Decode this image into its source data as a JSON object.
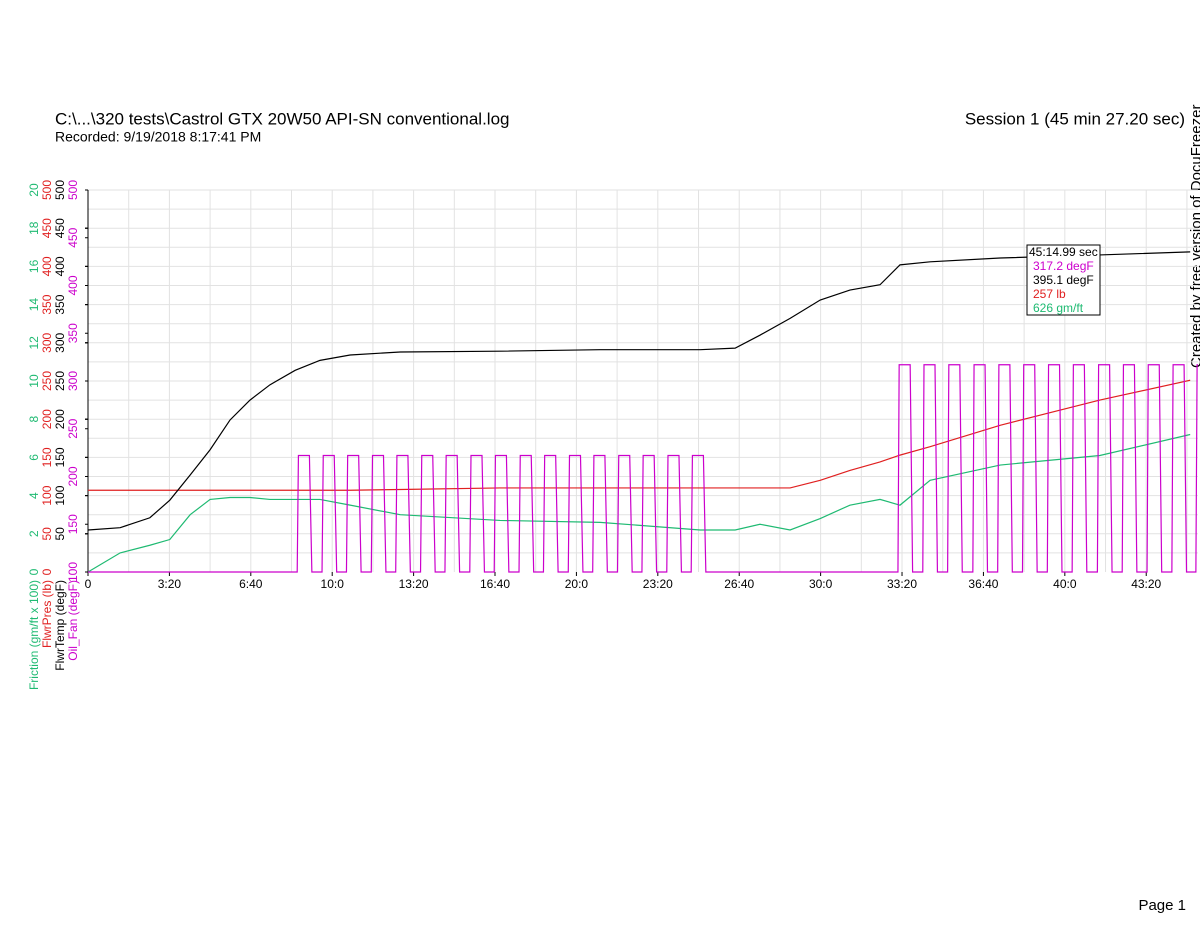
{
  "chart_data": {
    "type": "line",
    "title": "C:\\...\\320 tests\\Castrol GTX 20W50 API-SN conventional.log",
    "subtitle": "Recorded: 9/19/2018 8:17:41 PM",
    "session": "Session 1 (45 min 27.20 sec)",
    "watermark": "Created by free version of DocuFreezer",
    "footer": "Page 1",
    "xlim": [
      0,
      2727.2
    ],
    "xticks": [
      0,
      {
        "value": 200,
        "label": "3:20"
      },
      {
        "value": 400,
        "label": "6:40"
      },
      {
        "value": 600,
        "label": "10:0"
      },
      {
        "value": 800,
        "label": "13:20"
      },
      {
        "value": 1000,
        "label": "16:40"
      },
      {
        "value": 1200,
        "label": "20:0"
      },
      {
        "value": 1400,
        "label": "23:20"
      },
      {
        "value": 1600,
        "label": "26:40"
      },
      {
        "value": 1800,
        "label": "30:0"
      },
      {
        "value": 2000,
        "label": "33:20"
      },
      {
        "value": 2200,
        "label": "36:40"
      },
      {
        "value": 2400,
        "label": "40:0"
      },
      {
        "value": 2600,
        "label": "43:20"
      }
    ],
    "xgrid": [
      100,
      200,
      300,
      400,
      500,
      600,
      700,
      800,
      900,
      1000,
      1100,
      1200,
      1300,
      1400,
      1500,
      1600,
      1700,
      1800,
      1900,
      2000,
      2100,
      2200,
      2300,
      2400,
      2500,
      2600,
      2700
    ],
    "ygrid": [
      1,
      2,
      3,
      4,
      5,
      6,
      7,
      8,
      9,
      10,
      11,
      12,
      13,
      14,
      15,
      16,
      17,
      18,
      19,
      20
    ],
    "grid": true,
    "series": [
      {
        "name": "Friction (gm/ft x 100)",
        "color": "#1fba72",
        "ylim": [
          0,
          20
        ],
        "yticks": [
          0,
          2,
          4,
          6,
          8,
          10,
          12,
          14,
          16,
          18,
          20
        ],
        "x": [
          0,
          79,
          152,
          201,
          251,
          300,
          349,
          398,
          447,
          509,
          570,
          644,
          767,
          1012,
          1258,
          1504,
          1590,
          1651,
          1725,
          1799,
          1872,
          1946,
          1995,
          2069,
          2241,
          2486,
          2708
        ],
        "values": [
          0,
          1.0,
          1.4,
          1.7,
          3.0,
          3.8,
          3.9,
          3.9,
          3.8,
          3.8,
          3.8,
          3.5,
          3.0,
          2.7,
          2.6,
          2.2,
          2.2,
          2.5,
          2.2,
          2.8,
          3.5,
          3.8,
          3.5,
          4.8,
          5.6,
          6.1,
          7.2
        ]
      },
      {
        "name": "FlwrPres (lb)",
        "color": "#e02020",
        "ylim": [
          0,
          500
        ],
        "yticks": [
          0,
          50,
          100,
          150,
          200,
          250,
          300,
          350,
          400,
          450,
          500
        ],
        "x": [
          0,
          79,
          152,
          201,
          251,
          300,
          349,
          398,
          447,
          509,
          570,
          644,
          767,
          1012,
          1258,
          1504,
          1590,
          1651,
          1725,
          1799,
          1872,
          1946,
          1995,
          2069,
          2241,
          2486,
          2708
        ],
        "values": [
          107,
          107,
          107,
          107,
          107,
          107,
          107,
          107,
          107,
          107,
          107,
          107,
          108,
          110,
          110,
          110,
          110,
          110,
          110,
          120,
          133,
          144,
          153,
          164,
          192,
          225,
          251
        ]
      },
      {
        "name": "FlwrTemp (degF)",
        "color": "#000000",
        "ylim": [
          0,
          500
        ],
        "yticks": [
          50,
          100,
          150,
          200,
          250,
          300,
          350,
          400,
          450,
          500
        ],
        "x": [
          0,
          79,
          152,
          201,
          251,
          300,
          349,
          398,
          447,
          509,
          570,
          644,
          767,
          1012,
          1258,
          1504,
          1590,
          1651,
          1725,
          1799,
          1872,
          1946,
          1995,
          2069,
          2241,
          2486,
          2708
        ],
        "values": [
          55,
          58,
          71,
          94,
          127,
          160,
          199,
          225,
          245,
          264,
          277,
          284,
          288,
          289,
          291,
          291,
          293,
          310,
          332,
          356,
          369,
          376,
          402,
          406,
          411,
          415,
          419
        ]
      },
      {
        "name": "Oil_Fan (degF)",
        "color": "#cc00cc",
        "ylim": [
          100,
          500
        ],
        "yticks": [
          100,
          150,
          200,
          250,
          300,
          350,
          400,
          450,
          500
        ],
        "x": [
          0,
          514,
          517,
          544,
          550,
          575,
          578,
          605,
          611,
          635,
          638,
          665,
          671,
          696,
          699,
          726,
          732,
          756,
          759,
          786,
          792,
          817,
          820,
          847,
          853,
          877,
          880,
          907,
          913,
          938,
          941,
          968,
          974,
          998,
          1001,
          1028,
          1034,
          1059,
          1062,
          1089,
          1095,
          1119,
          1122,
          1149,
          1155,
          1180,
          1183,
          1210,
          1216,
          1240,
          1243,
          1270,
          1276,
          1301,
          1304,
          1331,
          1337,
          1361,
          1364,
          1391,
          1397,
          1422,
          1425,
          1452,
          1458,
          1482,
          1485,
          1512,
          1518,
          1990,
          1993,
          2020,
          2026,
          2051,
          2054,
          2081,
          2087,
          2112,
          2115,
          2142,
          2148,
          2174,
          2177,
          2204,
          2210,
          2235,
          2238,
          2265,
          2271,
          2296,
          2299,
          2326,
          2332,
          2357,
          2360,
          2387,
          2393,
          2418,
          2421,
          2448,
          2454,
          2480,
          2483,
          2510,
          2516,
          2541,
          2544,
          2571,
          2577,
          2602,
          2605,
          2632,
          2638,
          2663,
          2666,
          2693,
          2699,
          2722,
          2725,
          2727
        ],
        "values": [
          100,
          100,
          222,
          222,
          100,
          100,
          222,
          222,
          100,
          100,
          222,
          222,
          100,
          100,
          222,
          222,
          100,
          100,
          222,
          222,
          100,
          100,
          222,
          222,
          100,
          100,
          222,
          222,
          100,
          100,
          222,
          222,
          100,
          100,
          222,
          222,
          100,
          100,
          222,
          222,
          100,
          100,
          222,
          222,
          100,
          100,
          222,
          222,
          100,
          100,
          222,
          222,
          100,
          100,
          222,
          222,
          100,
          100,
          222,
          222,
          100,
          100,
          222,
          222,
          100,
          100,
          222,
          222,
          100,
          100,
          317,
          317,
          100,
          100,
          317,
          317,
          100,
          100,
          317,
          317,
          100,
          100,
          317,
          317,
          100,
          100,
          317,
          317,
          100,
          100,
          317,
          317,
          100,
          100,
          317,
          317,
          100,
          100,
          317,
          317,
          100,
          100,
          317,
          317,
          100,
          100,
          317,
          317,
          100,
          100,
          317,
          317,
          100,
          100,
          317,
          317,
          100,
          100,
          317,
          317
        ]
      }
    ],
    "cursor": {
      "time": "45:14.99 sec",
      "readouts": [
        {
          "label": "317.2 degF",
          "color": "#cc00cc"
        },
        {
          "label": "395.1 degF",
          "color": "#000000"
        },
        {
          "label": "257 lb",
          "color": "#e02020"
        },
        {
          "label": "626 gm/ft",
          "color": "#1fba72"
        }
      ]
    }
  }
}
